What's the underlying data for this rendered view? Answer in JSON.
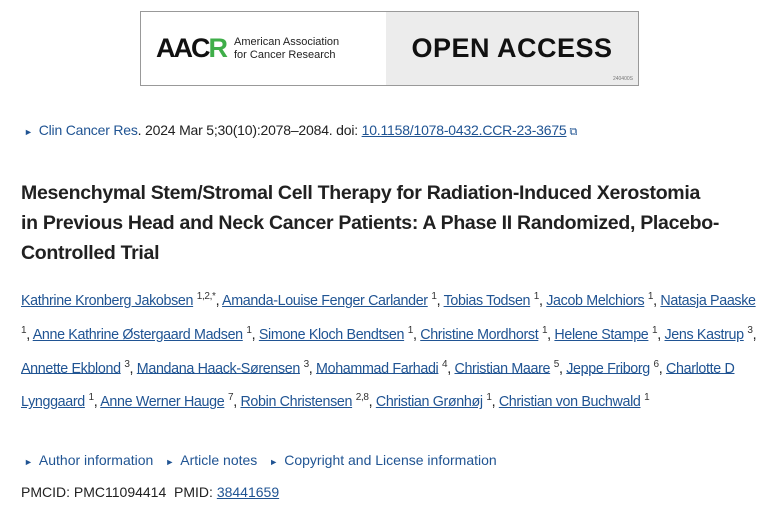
{
  "banner": {
    "logo_text_a": "AAC",
    "logo_text_b": "R",
    "org_line1": "American Association",
    "org_line2": "for Cancer Research",
    "label": "OPEN ACCESS",
    "code": "240400S"
  },
  "citation": {
    "journal": "Clin Cancer Res",
    "details": ". 2024 Mar 5;30(10):2078–2084. doi: ",
    "doi": "10.1158/1078-0432.CCR-23-3675"
  },
  "title": "Mesenchymal Stem/Stromal Cell Therapy for Radiation-Induced Xerostomia in Previous Head and Neck Cancer Patients: A Phase II Randomized, Placebo-Controlled Trial",
  "authors": [
    {
      "name": "Kathrine Kronberg Jakobsen",
      "aff": "1,2,*"
    },
    {
      "name": "Amanda-Louise Fenger Carlander",
      "aff": "1"
    },
    {
      "name": "Tobias Todsen",
      "aff": "1"
    },
    {
      "name": "Jacob Melchiors",
      "aff": "1"
    },
    {
      "name": "Natasja Paaske",
      "aff": "1"
    },
    {
      "name": "Anne Kathrine Østergaard Madsen",
      "aff": "1"
    },
    {
      "name": "Simone Kloch Bendtsen",
      "aff": "1"
    },
    {
      "name": "Christine Mordhorst",
      "aff": "1"
    },
    {
      "name": "Helene Stampe",
      "aff": "1"
    },
    {
      "name": "Jens Kastrup",
      "aff": "3"
    },
    {
      "name": "Annette Ekblond",
      "aff": "3"
    },
    {
      "name": "Mandana Haack-Sørensen",
      "aff": "3"
    },
    {
      "name": "Mohammad Farhadi",
      "aff": "4"
    },
    {
      "name": "Christian Maare",
      "aff": "5"
    },
    {
      "name": "Jeppe Friborg",
      "aff": "6"
    },
    {
      "name": "Charlotte D Lynggaard",
      "aff": "1"
    },
    {
      "name": "Anne Werner Hauge",
      "aff": "7"
    },
    {
      "name": "Robin Christensen",
      "aff": "2,8"
    },
    {
      "name": "Christian Grønhøj",
      "aff": "1"
    },
    {
      "name": "Christian von Buchwald",
      "aff": "1"
    }
  ],
  "notes": [
    "Author information",
    "Article notes",
    "Copyright and License information"
  ],
  "ids": {
    "pmcid_label": "PMCID: ",
    "pmcid": "PMC11094414",
    "pmid_label": "PMID: ",
    "pmid": "38441659"
  }
}
